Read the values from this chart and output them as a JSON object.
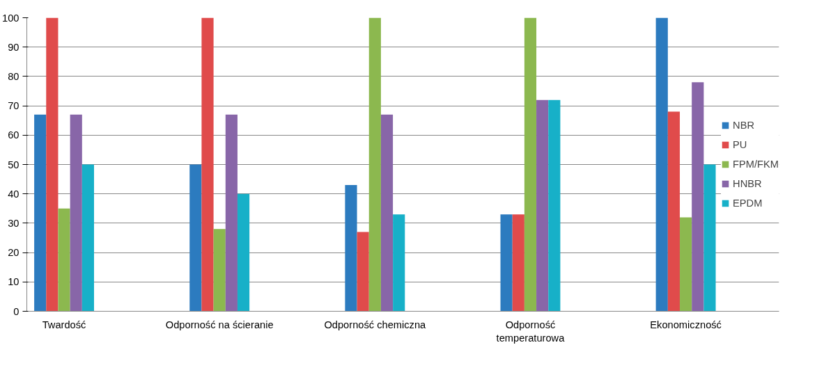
{
  "chart_data": {
    "type": "bar",
    "categories": [
      "Twardość",
      "Odporność na ścieranie",
      "Odporność chemiczna",
      "Odporność temperaturowa",
      "Ekonomiczność"
    ],
    "series": [
      {
        "name": "NBR",
        "color": "#2c7bbf",
        "values": [
          67,
          50,
          43,
          33,
          100
        ]
      },
      {
        "name": "PU",
        "color": "#e04b4b",
        "values": [
          100,
          100,
          27,
          33,
          68
        ]
      },
      {
        "name": "FPM/FKM",
        "color": "#8cb84f",
        "values": [
          35,
          28,
          100,
          100,
          32
        ]
      },
      {
        "name": "HNBR",
        "color": "#8866a8",
        "values": [
          67,
          67,
          67,
          72,
          78
        ]
      },
      {
        "name": "EPDM",
        "color": "#17b0c8",
        "values": [
          50,
          40,
          33,
          72,
          50
        ]
      }
    ],
    "ylim": [
      0,
      100
    ],
    "yticks": [
      0,
      10,
      20,
      30,
      40,
      50,
      60,
      70,
      80,
      90,
      100
    ],
    "grid": "y",
    "legend": "right"
  }
}
